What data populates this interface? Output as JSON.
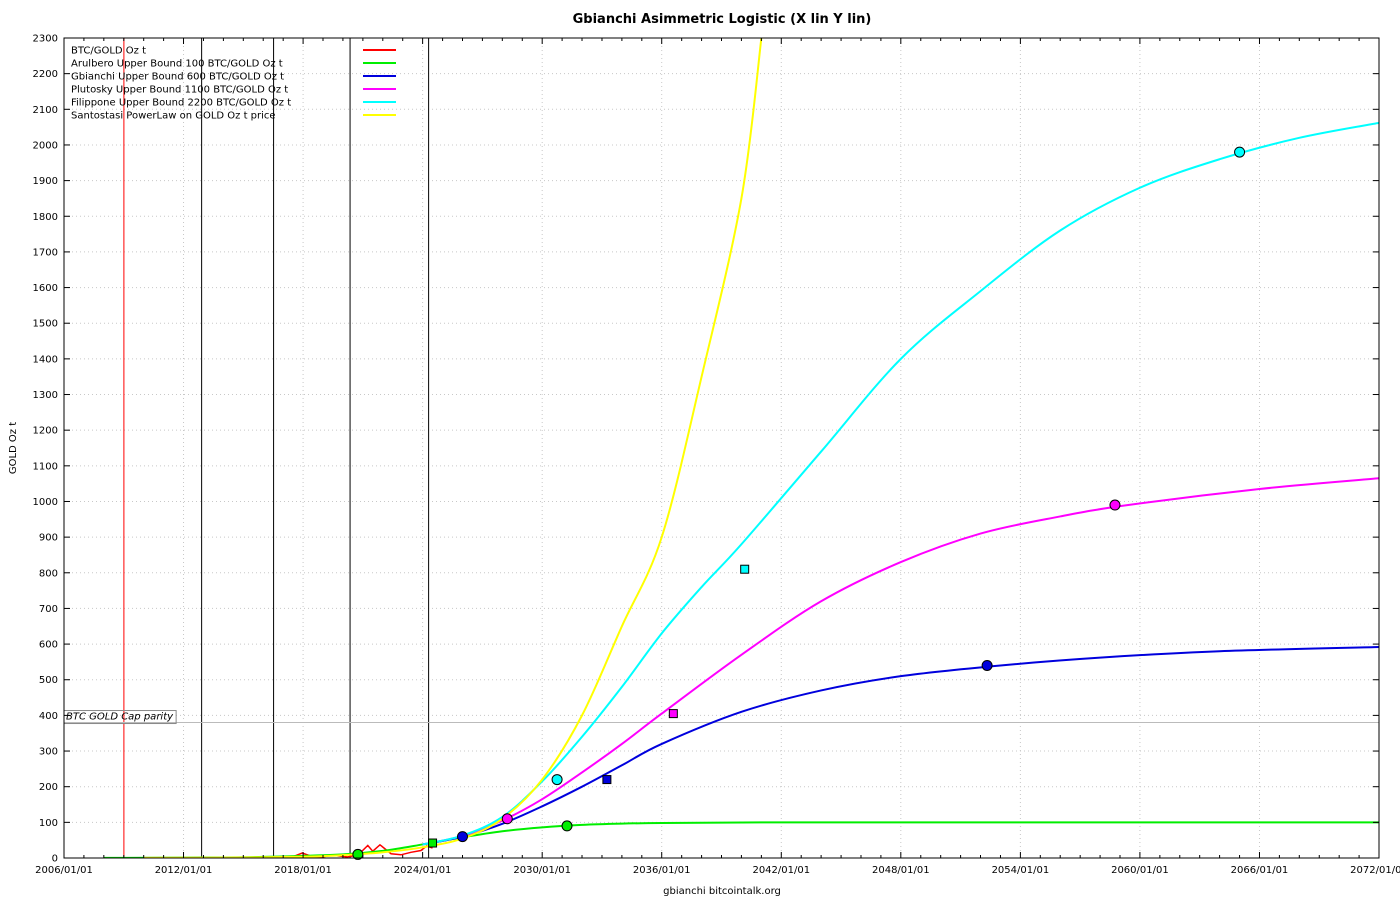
{
  "chart_data": {
    "type": "line",
    "title": "Gbianchi Asimmetric Logistic (X lin Y lin)",
    "xlabel": "gbianchi bitcointalk.org",
    "ylabel": "GOLD Oz t",
    "x_axis": "date",
    "xlim": [
      "2006-01-01",
      "2072-01-01"
    ],
    "ylim": [
      0,
      2300
    ],
    "x_ticks": [
      "2006/01/01",
      "2012/01/01",
      "2018/01/01",
      "2024/01/01",
      "2030/01/01",
      "2036/01/01",
      "2042/01/01",
      "2048/01/01",
      "2054/01/01",
      "2060/01/01",
      "2066/01/01",
      "2072/01/01"
    ],
    "y_ticks": [
      0,
      100,
      200,
      300,
      400,
      500,
      600,
      700,
      800,
      900,
      1000,
      1100,
      1200,
      1300,
      1400,
      1500,
      1600,
      1700,
      1800,
      1900,
      2000,
      2100,
      2200,
      2300
    ],
    "grid": true,
    "legend_position": "top-left",
    "series": [
      {
        "name": "BTC/GOLD Oz t",
        "color": "#ff0000",
        "points": [
          [
            "2013-01-01",
            0.1
          ],
          [
            "2014-01-01",
            0.6
          ],
          [
            "2015-01-01",
            0.2
          ],
          [
            "2016-06-01",
            0.5
          ],
          [
            "2017-06-01",
            2
          ],
          [
            "2017-12-15",
            14
          ],
          [
            "2018-06-01",
            5
          ],
          [
            "2019-01-01",
            3
          ],
          [
            "2019-06-01",
            8
          ],
          [
            "2020-03-15",
            3
          ],
          [
            "2020-10-01",
            8
          ],
          [
            "2021-04-01",
            35
          ],
          [
            "2021-07-01",
            19
          ],
          [
            "2021-11-10",
            37
          ],
          [
            "2022-06-01",
            12
          ],
          [
            "2022-12-01",
            9
          ],
          [
            "2023-06-01",
            16
          ],
          [
            "2023-12-01",
            21
          ],
          [
            "2024-03-15",
            34
          ],
          [
            "2024-07-01",
            28
          ]
        ]
      },
      {
        "name": "Arulbero Upper Bound 100  BTC/GOLD Oz t",
        "color": "#00ee00",
        "points": [
          [
            "2008-01-01",
            0.3
          ],
          [
            "2012-01-01",
            1
          ],
          [
            "2016-01-01",
            3
          ],
          [
            "2020-01-01",
            10
          ],
          [
            "2022-01-01",
            20
          ],
          [
            "2024-01-01",
            38
          ],
          [
            "2026-01-01",
            58
          ],
          [
            "2028-01-01",
            75
          ],
          [
            "2030-01-01",
            86
          ],
          [
            "2032-01-01",
            93
          ],
          [
            "2034-01-01",
            96.5
          ],
          [
            "2036-01-01",
            98.3
          ],
          [
            "2040-01-01",
            99.6
          ],
          [
            "2046-01-01",
            100
          ],
          [
            "2072-01-01",
            100
          ]
        ]
      },
      {
        "name": "Gbianchi Upper Bound 600  BTC/GOLD Oz t",
        "color": "#0000dd",
        "points": [
          [
            "2024-01-01",
            38
          ],
          [
            "2026-01-01",
            60
          ],
          [
            "2028-01-01",
            96
          ],
          [
            "2030-01-01",
            145
          ],
          [
            "2032-01-01",
            200
          ],
          [
            "2034-01-01",
            260
          ],
          [
            "2036-01-01",
            320
          ],
          [
            "2040-01-01",
            410
          ],
          [
            "2044-01-01",
            470
          ],
          [
            "2048-01-01",
            510
          ],
          [
            "2053-01-01",
            540
          ],
          [
            "2058-01-01",
            562
          ],
          [
            "2064-01-01",
            580
          ],
          [
            "2072-01-01",
            592
          ]
        ]
      },
      {
        "name": "Plutosky Upper Bound 1100  BTC/GOLD Oz t",
        "color": "#ff00ff",
        "points": [
          [
            "2024-01-01",
            38
          ],
          [
            "2026-01-01",
            62
          ],
          [
            "2028-01-01",
            105
          ],
          [
            "2030-01-01",
            165
          ],
          [
            "2032-01-01",
            240
          ],
          [
            "2034-01-01",
            320
          ],
          [
            "2036-01-01",
            405
          ],
          [
            "2040-01-01",
            570
          ],
          [
            "2044-01-01",
            720
          ],
          [
            "2048-01-01",
            830
          ],
          [
            "2052-01-01",
            910
          ],
          [
            "2056-01-01",
            958
          ],
          [
            "2059-06-01",
            990
          ],
          [
            "2066-01-01",
            1035
          ],
          [
            "2072-01-01",
            1065
          ]
        ]
      },
      {
        "name": "Filippone Upper Bound 2200  BTC/GOLD Oz t",
        "color": "#00ffff",
        "points": [
          [
            "2024-01-01",
            38
          ],
          [
            "2026-01-01",
            63
          ],
          [
            "2028-01-01",
            115
          ],
          [
            "2030-01-01",
            215
          ],
          [
            "2032-01-01",
            340
          ],
          [
            "2034-01-01",
            480
          ],
          [
            "2036-01-01",
            630
          ],
          [
            "2038-01-01",
            760
          ],
          [
            "2040-01-01",
            880
          ],
          [
            "2044-01-01",
            1140
          ],
          [
            "2048-01-01",
            1400
          ],
          [
            "2052-01-01",
            1590
          ],
          [
            "2056-01-01",
            1760
          ],
          [
            "2060-01-01",
            1880
          ],
          [
            "2064-01-01",
            1960
          ],
          [
            "2068-01-01",
            2020
          ],
          [
            "2072-01-01",
            2062
          ]
        ]
      },
      {
        "name": "Santostasi PowerLaw on GOLD Oz t price",
        "color": "#ffff00",
        "points": [
          [
            "2010-01-01",
            0.2
          ],
          [
            "2014-01-01",
            1
          ],
          [
            "2018-01-01",
            3.5
          ],
          [
            "2020-01-01",
            8
          ],
          [
            "2022-01-01",
            16
          ],
          [
            "2024-01-01",
            30
          ],
          [
            "2026-01-01",
            55
          ],
          [
            "2028-01-01",
            110
          ],
          [
            "2030-01-01",
            220
          ],
          [
            "2032-01-01",
            400
          ],
          [
            "2034-01-01",
            650
          ],
          [
            "2036-01-01",
            900
          ],
          [
            "2038-01-01",
            1350
          ],
          [
            "2040-01-01",
            1850
          ],
          [
            "2041-01-01",
            2300
          ]
        ]
      }
    ],
    "markers": [
      {
        "series": 1,
        "shape": "circle",
        "x": "2020-10-01",
        "y": 10
      },
      {
        "series": 1,
        "shape": "square",
        "x": "2024-07-01",
        "y": 42
      },
      {
        "series": 1,
        "shape": "circle",
        "x": "2031-04-01",
        "y": 90
      },
      {
        "series": 2,
        "shape": "circle",
        "x": "2026-01-01",
        "y": 60
      },
      {
        "series": 2,
        "shape": "square",
        "x": "2033-04-01",
        "y": 220
      },
      {
        "series": 2,
        "shape": "circle",
        "x": "2052-05-01",
        "y": 540
      },
      {
        "series": 3,
        "shape": "circle",
        "x": "2028-04-01",
        "y": 110
      },
      {
        "series": 3,
        "shape": "square",
        "x": "2036-08-01",
        "y": 405
      },
      {
        "series": 3,
        "shape": "circle",
        "x": "2058-10-01",
        "y": 990
      },
      {
        "series": 4,
        "shape": "circle",
        "x": "2030-10-01",
        "y": 220
      },
      {
        "series": 4,
        "shape": "square",
        "x": "2040-03-01",
        "y": 810
      },
      {
        "series": 4,
        "shape": "circle",
        "x": "2065-01-01",
        "y": 1980
      }
    ],
    "vertical_lines": [
      {
        "x": "2009-01-03",
        "color": "#ff0000"
      },
      {
        "x": "2012-11-28",
        "color": "#000000"
      },
      {
        "x": "2016-07-09",
        "color": "#000000"
      },
      {
        "x": "2020-05-11",
        "color": "#000000"
      },
      {
        "x": "2024-04-20",
        "color": "#000000"
      }
    ],
    "horizontal_line": {
      "y": 380,
      "color": "#bbbbbb",
      "label": "BTC GOLD Cap parity"
    }
  }
}
